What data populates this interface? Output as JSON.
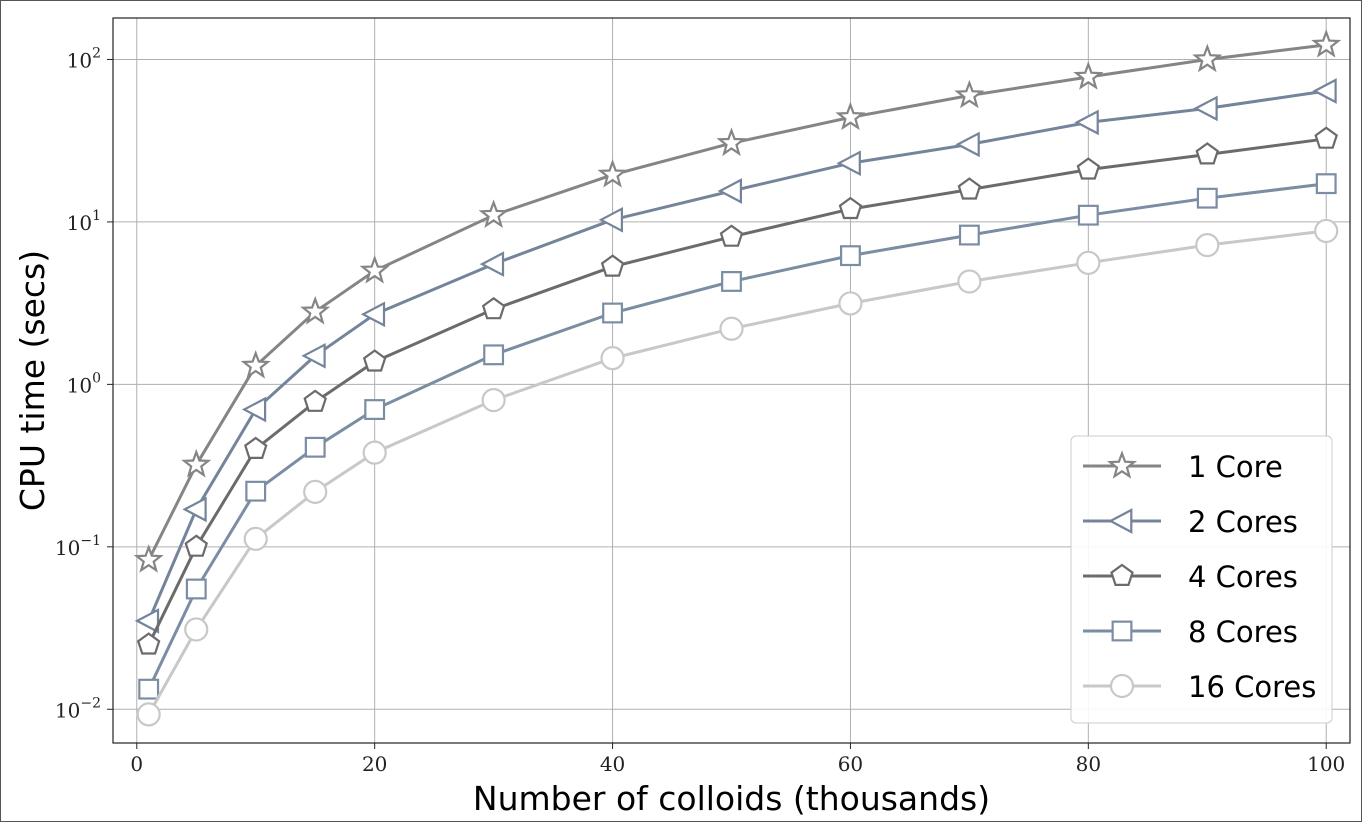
{
  "chart_data": {
    "type": "line",
    "xlabel": "Number of colloids (thousands)",
    "ylabel": "CPU time (secs)",
    "xlim": [
      -2,
      102
    ],
    "ylim": [
      0.0062,
      180
    ],
    "yscale": "log",
    "x_ticks": [
      0,
      20,
      40,
      60,
      80,
      100
    ],
    "y_ticks": [
      {
        "value": 0.01,
        "base": "10",
        "exp": "−2"
      },
      {
        "value": 0.1,
        "base": "10",
        "exp": "−1"
      },
      {
        "value": 1,
        "base": "10",
        "exp": "0"
      },
      {
        "value": 10,
        "base": "10",
        "exp": "1"
      },
      {
        "value": 100,
        "base": "10",
        "exp": "2"
      }
    ],
    "grid": true,
    "legend_position": "lower-right",
    "x": [
      1,
      5,
      10,
      15,
      20,
      30,
      40,
      50,
      60,
      70,
      80,
      90,
      100
    ],
    "series": [
      {
        "name": "1 Core",
        "marker": "star",
        "color": "#858585",
        "values": [
          0.083,
          0.32,
          1.3,
          2.8,
          5.0,
          11.0,
          19.5,
          30.5,
          44.0,
          60.0,
          78.0,
          100.0,
          123.0
        ]
      },
      {
        "name": "2 Cores",
        "marker": "triangle-left",
        "color": "#74849a",
        "values": [
          0.035,
          0.17,
          0.7,
          1.5,
          2.7,
          5.5,
          10.3,
          15.5,
          23.0,
          30.0,
          41.0,
          50.0,
          64.0
        ]
      },
      {
        "name": "4 Cores",
        "marker": "pentagon",
        "color": "#6b6b6b",
        "values": [
          0.025,
          0.1,
          0.4,
          0.78,
          1.38,
          2.9,
          5.3,
          8.1,
          12.0,
          15.8,
          21.0,
          26.0,
          32.5
        ]
      },
      {
        "name": "8 Cores",
        "marker": "square",
        "color": "#7b8da2",
        "values": [
          0.0133,
          0.055,
          0.22,
          0.41,
          0.7,
          1.52,
          2.75,
          4.3,
          6.2,
          8.3,
          11.0,
          14.0,
          17.2
        ]
      },
      {
        "name": "16 Cores",
        "marker": "circle",
        "color": "#c8c8c8",
        "values": [
          0.0093,
          0.031,
          0.112,
          0.218,
          0.38,
          0.8,
          1.45,
          2.2,
          3.15,
          4.3,
          5.6,
          7.2,
          8.8
        ]
      }
    ]
  }
}
